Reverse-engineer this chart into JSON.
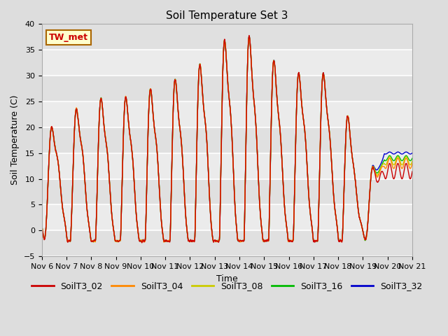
{
  "title": "Soil Temperature Set 3",
  "xlabel": "Time",
  "ylabel": "Soil Temperature (C)",
  "ylim": [
    -5,
    40
  ],
  "xtick_labels": [
    "Nov 6",
    "Nov 7",
    "Nov 8",
    "Nov 9",
    "Nov 10",
    "Nov 11",
    "Nov 12",
    "Nov 13",
    "Nov 14",
    "Nov 15",
    "Nov 16",
    "Nov 17",
    "Nov 18",
    "Nov 19",
    "Nov 20",
    "Nov 21"
  ],
  "series_labels": [
    "SoilT3_02",
    "SoilT3_04",
    "SoilT3_08",
    "SoilT3_16",
    "SoilT3_32"
  ],
  "series_colors": [
    "#cc0000",
    "#ff8800",
    "#cccc00",
    "#00bb00",
    "#0000cc"
  ],
  "annotation_text": "TW_met",
  "bg_color": "#dddddd",
  "plot_bg_color": "#eeeeee",
  "title_fontsize": 11,
  "axis_fontsize": 9,
  "tick_fontsize": 8,
  "legend_fontsize": 9,
  "linewidth": 1.0,
  "n_points": 4000
}
